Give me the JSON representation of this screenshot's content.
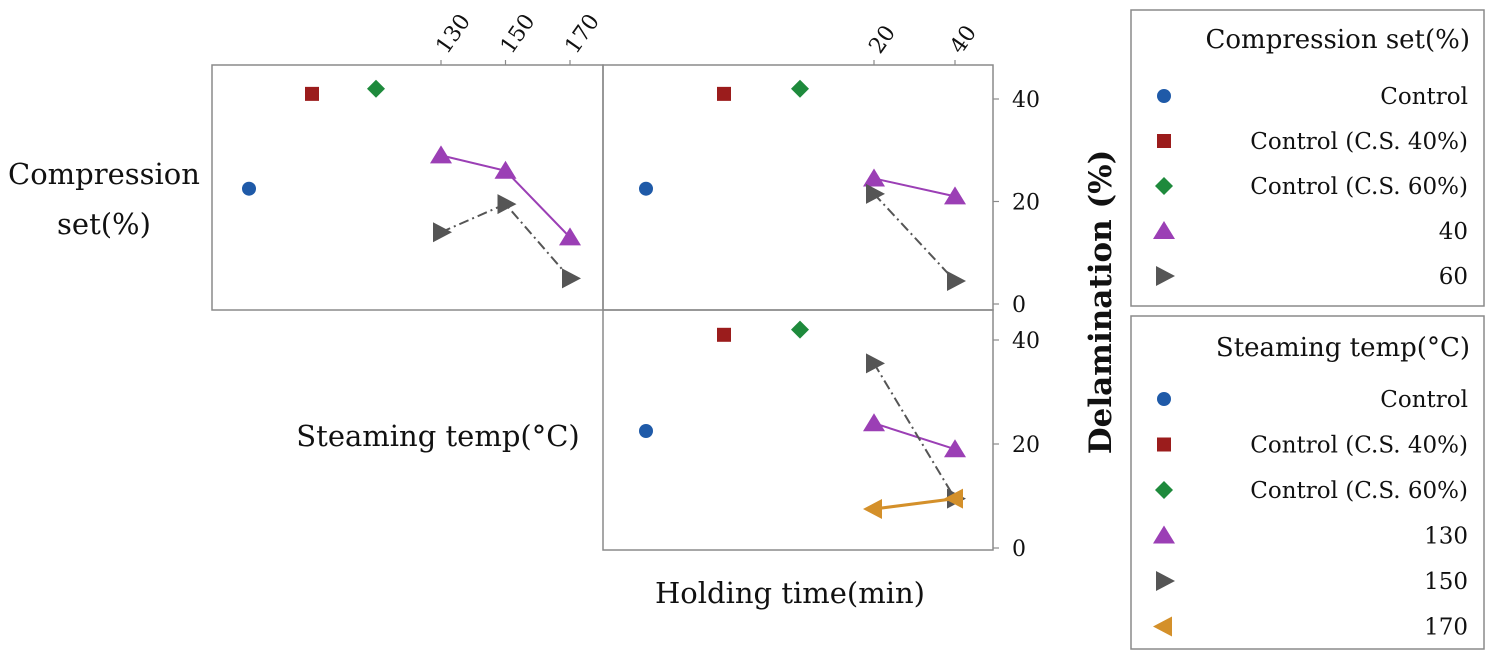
{
  "chart_data": {
    "type": "scatter",
    "ylabel": "Delamination (%)",
    "xlabel_bottom": "Holding time(min)",
    "row_labels": {
      "compression_line1": "Compression",
      "compression_line2": "set(%)",
      "steaming": "Steaming temp(°C)"
    },
    "top_ticks_temp": [
      "130",
      "150",
      "170"
    ],
    "top_ticks_time": [
      "20",
      "40"
    ],
    "y_ticks_upper": [
      "0",
      "20",
      "40"
    ],
    "y_ticks_lower": [
      "0",
      "20",
      "40"
    ],
    "ylim": [
      0,
      45
    ],
    "controls": [
      {
        "name": "Control",
        "value": 22.5
      },
      {
        "name": "Control (C.S. 40%)",
        "value": 41
      },
      {
        "name": "Control (C.S. 60%)",
        "value": 42
      }
    ],
    "panels": [
      {
        "id": "compression_vs_temp",
        "x_axis": "Steaming temp",
        "x": [
          130,
          150,
          170
        ],
        "series": [
          {
            "name": "40",
            "values": [
              29,
              26,
              13
            ]
          },
          {
            "name": "60",
            "values": [
              14,
              19.5,
              5
            ]
          }
        ]
      },
      {
        "id": "compression_vs_time",
        "x_axis": "Holding time",
        "x": [
          20,
          40
        ],
        "series": [
          {
            "name": "40",
            "values": [
              24.5,
              21
            ]
          },
          {
            "name": "60",
            "values": [
              21.5,
              4.5
            ]
          }
        ]
      },
      {
        "id": "steaming_vs_time",
        "x_axis": "Holding time",
        "x": [
          20,
          40
        ],
        "series": [
          {
            "name": "130",
            "values": [
              24,
              19
            ]
          },
          {
            "name": "150",
            "values": [
              35.5,
              9.5
            ]
          },
          {
            "name": "170",
            "values": [
              7.5,
              9.5
            ]
          }
        ]
      }
    ],
    "legends": [
      {
        "title": "Compression set(%)",
        "entries": [
          {
            "label": "Control",
            "marker": "circle",
            "color": "#1f5aa8"
          },
          {
            "label": "Control (C.S. 40%)",
            "marker": "square",
            "color": "#9b1c1c"
          },
          {
            "label": "Control (C.S. 60%)",
            "marker": "diamond",
            "color": "#1e8a3c"
          },
          {
            "label": "40",
            "marker": "triangle-up",
            "color": "#9b3fb5"
          },
          {
            "label": "60",
            "marker": "triangle-right",
            "color": "#555555"
          }
        ]
      },
      {
        "title": "Steaming temp(°C)",
        "entries": [
          {
            "label": "Control",
            "marker": "circle",
            "color": "#1f5aa8"
          },
          {
            "label": "Control (C.S. 40%)",
            "marker": "square",
            "color": "#9b1c1c"
          },
          {
            "label": "Control (C.S. 60%)",
            "marker": "diamond",
            "color": "#1e8a3c"
          },
          {
            "label": "130",
            "marker": "triangle-up",
            "color": "#9b3fb5"
          },
          {
            "label": "150",
            "marker": "triangle-right",
            "color": "#555555"
          },
          {
            "label": "170",
            "marker": "triangle-left",
            "color": "#d4902a"
          }
        ]
      }
    ],
    "colors": {
      "control": "#1f5aa8",
      "cs40": "#9b1c1c",
      "cs60": "#1e8a3c",
      "purple": "#9b3fb5",
      "gray": "#555555",
      "orange": "#d4902a",
      "frame": "#8a8a8a"
    }
  }
}
